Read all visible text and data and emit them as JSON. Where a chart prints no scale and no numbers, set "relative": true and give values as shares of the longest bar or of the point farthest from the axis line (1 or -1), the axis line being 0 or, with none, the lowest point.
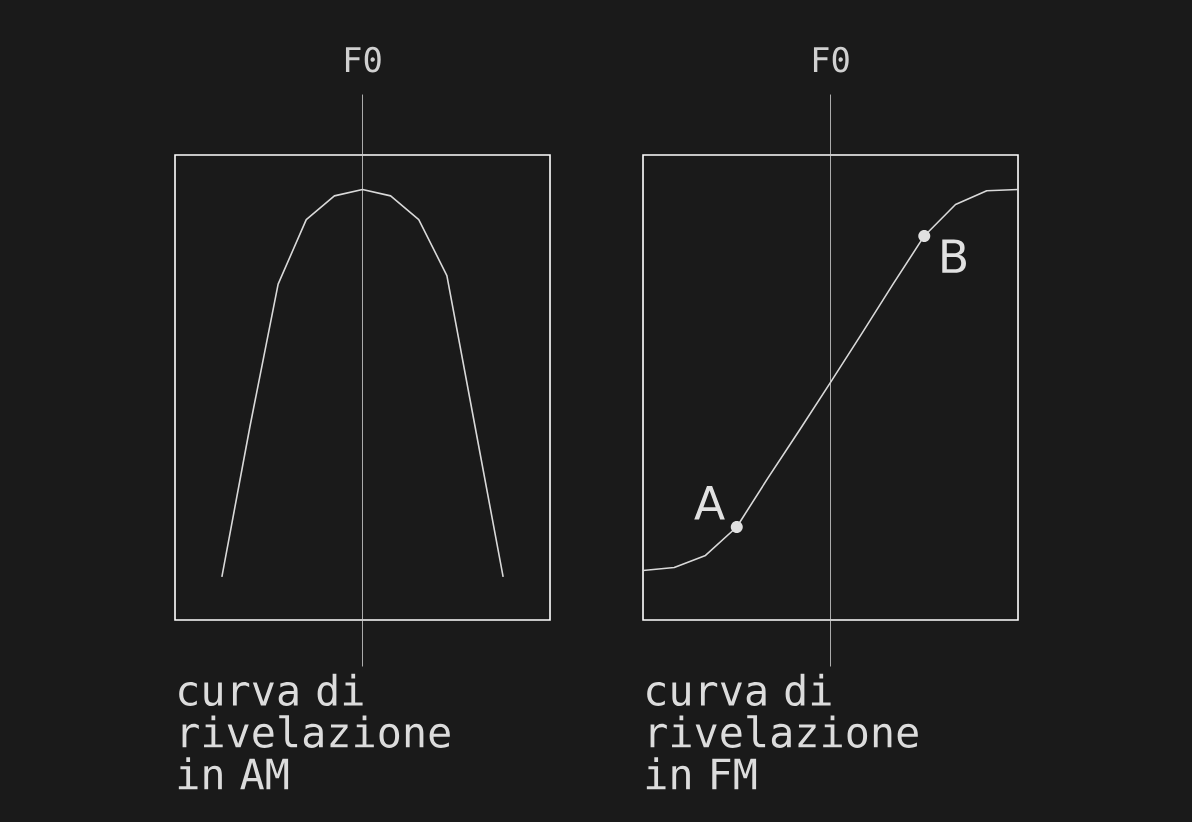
{
  "chart_data": [
    {
      "type": "line",
      "relative": true,
      "tick_labels": false,
      "categories": [
        null,
        null,
        null,
        null,
        null,
        null,
        null,
        null,
        null,
        null,
        null
      ],
      "values": [
        0.1,
        0.45,
        0.78,
        0.93,
        0.985,
        1.0,
        0.985,
        0.93,
        0.8,
        0.45,
        0.1
      ],
      "color": "#d9d9d9",
      "marker": "none",
      "ref_lines": [
        {
          "axis": "x",
          "label": "F0",
          "color": "#d0d0d0"
        }
      ],
      "annotations": [
        "curva di rivelazione in AM"
      ]
    },
    {
      "type": "line",
      "relative": true,
      "tick_labels": false,
      "categories": [
        null,
        null,
        null,
        null,
        null,
        null,
        null,
        null,
        null,
        null,
        null,
        null,
        null
      ],
      "series": [
        {
          "type": "line",
          "values": [
            0.115,
            0.122,
            0.15,
            0.216,
            0.33,
            0.44,
            0.552,
            0.665,
            0.78,
            0.892,
            0.965,
            0.997,
            1.0
          ],
          "color": "#d9d9d9",
          "marker": "none"
        }
      ],
      "ref_lines": [
        {
          "axis": "x",
          "label": "F0",
          "color": "#d0d0d0"
        }
      ],
      "annotations": [
        "curva di rivelazione in FM",
        "A",
        "B"
      ]
    }
  ]
}
